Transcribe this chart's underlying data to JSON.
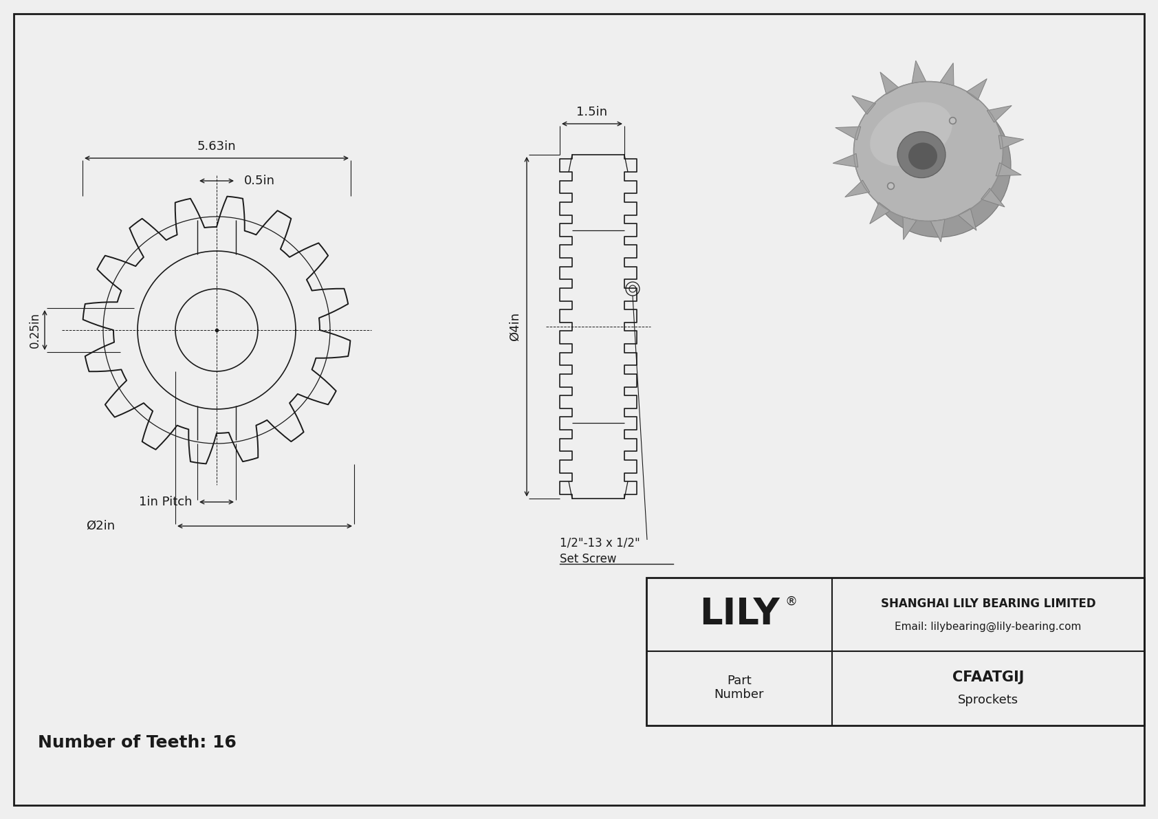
{
  "bg_color": "#efefef",
  "line_color": "#1a1a1a",
  "title_text": "Number of Teeth: 16",
  "company": "SHANGHAI LILY BEARING LIMITED",
  "email": "Email: lilybearing@lily-bearing.com",
  "part_number_label": "Part\nNumber",
  "part_number": "CFAATGIJ",
  "category": "Sprockets",
  "brand": "LILY",
  "dim_5_63": "5.63in",
  "dim_0_5": "0.5in",
  "dim_0_25": "0.25in",
  "dim_1_5": "1.5in",
  "dim_4": "Ø4in",
  "dim_pitch": "1in Pitch",
  "dim_bore": "Ø2in",
  "dim_setscrew": "1/2\"-13 x 1/2\"\nSet Screw"
}
